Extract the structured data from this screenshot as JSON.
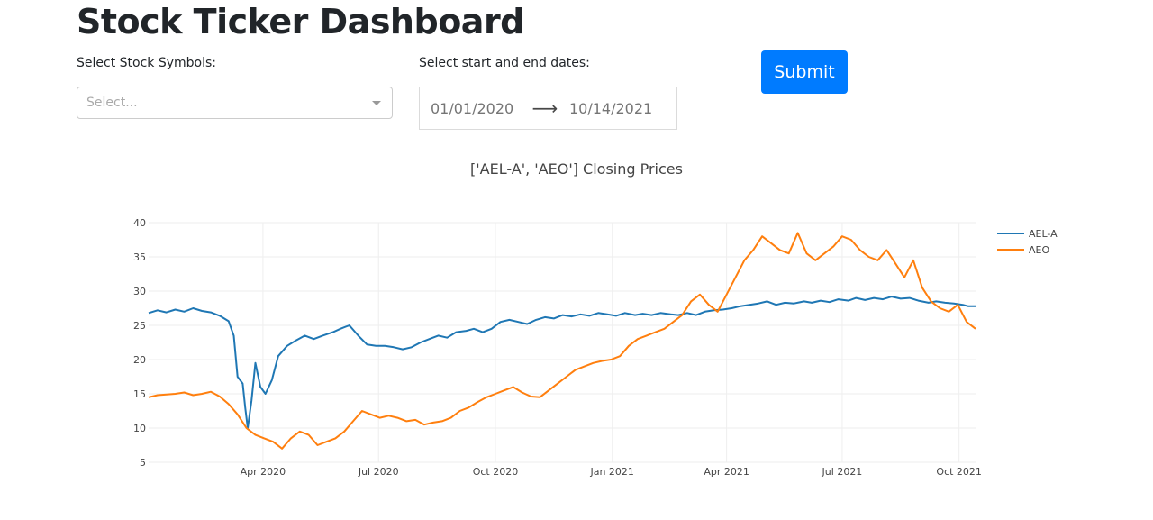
{
  "header": {
    "title": "Stock Ticker Dashboard"
  },
  "controls": {
    "symbols_label": "Select Stock Symbols:",
    "symbols_placeholder": "Select...",
    "dates_label": "Select start and end dates:",
    "start_date": "01/01/2020",
    "end_date": "10/14/2021",
    "date_arrow": "⟶",
    "submit_label": "Submit"
  },
  "chart_data": {
    "type": "line",
    "title": "['AEL-A', 'AEO'] Closing Prices",
    "xlabel": "",
    "ylabel": "",
    "xlim": [
      "2020-01-02",
      "2021-10-14"
    ],
    "ylim": [
      5,
      40
    ],
    "yticks": [
      5,
      10,
      15,
      20,
      25,
      30,
      35,
      40
    ],
    "xticks": [
      {
        "date": "2020-04-01",
        "label": "Apr 2020"
      },
      {
        "date": "2020-07-01",
        "label": "Jul 2020"
      },
      {
        "date": "2020-10-01",
        "label": "Oct 2020"
      },
      {
        "date": "2021-01-01",
        "label": "Jan 2021"
      },
      {
        "date": "2021-04-01",
        "label": "Apr 2021"
      },
      {
        "date": "2021-07-01",
        "label": "Jul 2021"
      },
      {
        "date": "2021-10-01",
        "label": "Oct 2021"
      }
    ],
    "grid": true,
    "legend_position": "top-right",
    "series": [
      {
        "name": "AEL-A",
        "color": "#1f77b4",
        "points": [
          [
            "2020-01-02",
            26.8
          ],
          [
            "2020-01-09",
            27.2
          ],
          [
            "2020-01-16",
            26.9
          ],
          [
            "2020-01-23",
            27.3
          ],
          [
            "2020-01-30",
            27.0
          ],
          [
            "2020-02-06",
            27.5
          ],
          [
            "2020-02-13",
            27.1
          ],
          [
            "2020-02-20",
            26.9
          ],
          [
            "2020-02-27",
            26.4
          ],
          [
            "2020-03-05",
            25.6
          ],
          [
            "2020-03-09",
            23.5
          ],
          [
            "2020-03-12",
            17.5
          ],
          [
            "2020-03-16",
            16.5
          ],
          [
            "2020-03-18",
            13.0
          ],
          [
            "2020-03-20",
            10.0
          ],
          [
            "2020-03-23",
            14.0
          ],
          [
            "2020-03-26",
            19.5
          ],
          [
            "2020-03-30",
            16.0
          ],
          [
            "2020-04-03",
            15.0
          ],
          [
            "2020-04-08",
            17.0
          ],
          [
            "2020-04-13",
            20.5
          ],
          [
            "2020-04-20",
            22.0
          ],
          [
            "2020-04-27",
            22.8
          ],
          [
            "2020-05-04",
            23.5
          ],
          [
            "2020-05-11",
            23.0
          ],
          [
            "2020-05-18",
            23.5
          ],
          [
            "2020-05-26",
            24.0
          ],
          [
            "2020-06-01",
            24.5
          ],
          [
            "2020-06-08",
            25.0
          ],
          [
            "2020-06-15",
            23.5
          ],
          [
            "2020-06-22",
            22.2
          ],
          [
            "2020-06-29",
            22.0
          ],
          [
            "2020-07-06",
            22.0
          ],
          [
            "2020-07-13",
            21.8
          ],
          [
            "2020-07-20",
            21.5
          ],
          [
            "2020-07-27",
            21.8
          ],
          [
            "2020-08-03",
            22.5
          ],
          [
            "2020-08-10",
            23.0
          ],
          [
            "2020-08-17",
            23.5
          ],
          [
            "2020-08-24",
            23.2
          ],
          [
            "2020-08-31",
            24.0
          ],
          [
            "2020-09-08",
            24.2
          ],
          [
            "2020-09-14",
            24.5
          ],
          [
            "2020-09-21",
            24.0
          ],
          [
            "2020-09-28",
            24.5
          ],
          [
            "2020-10-05",
            25.5
          ],
          [
            "2020-10-12",
            25.8
          ],
          [
            "2020-10-19",
            25.5
          ],
          [
            "2020-10-26",
            25.2
          ],
          [
            "2020-11-02",
            25.8
          ],
          [
            "2020-11-09",
            26.2
          ],
          [
            "2020-11-16",
            26.0
          ],
          [
            "2020-11-23",
            26.5
          ],
          [
            "2020-11-30",
            26.3
          ],
          [
            "2020-12-07",
            26.6
          ],
          [
            "2020-12-14",
            26.4
          ],
          [
            "2020-12-21",
            26.8
          ],
          [
            "2020-12-28",
            26.6
          ],
          [
            "2021-01-04",
            26.4
          ],
          [
            "2021-01-11",
            26.8
          ],
          [
            "2021-01-19",
            26.5
          ],
          [
            "2021-01-25",
            26.7
          ],
          [
            "2021-02-01",
            26.5
          ],
          [
            "2021-02-08",
            26.8
          ],
          [
            "2021-02-16",
            26.6
          ],
          [
            "2021-02-22",
            26.5
          ],
          [
            "2021-03-01",
            26.8
          ],
          [
            "2021-03-08",
            26.5
          ],
          [
            "2021-03-15",
            27.0
          ],
          [
            "2021-03-22",
            27.2
          ],
          [
            "2021-03-29",
            27.3
          ],
          [
            "2021-04-05",
            27.5
          ],
          [
            "2021-04-12",
            27.8
          ],
          [
            "2021-04-19",
            28.0
          ],
          [
            "2021-04-26",
            28.2
          ],
          [
            "2021-05-03",
            28.5
          ],
          [
            "2021-05-10",
            28.0
          ],
          [
            "2021-05-17",
            28.3
          ],
          [
            "2021-05-24",
            28.2
          ],
          [
            "2021-06-01",
            28.5
          ],
          [
            "2021-06-07",
            28.3
          ],
          [
            "2021-06-14",
            28.6
          ],
          [
            "2021-06-21",
            28.4
          ],
          [
            "2021-06-28",
            28.8
          ],
          [
            "2021-07-06",
            28.6
          ],
          [
            "2021-07-12",
            29.0
          ],
          [
            "2021-07-19",
            28.7
          ],
          [
            "2021-07-26",
            29.0
          ],
          [
            "2021-08-02",
            28.8
          ],
          [
            "2021-08-09",
            29.2
          ],
          [
            "2021-08-16",
            28.9
          ],
          [
            "2021-08-23",
            29.0
          ],
          [
            "2021-08-30",
            28.6
          ],
          [
            "2021-09-07",
            28.3
          ],
          [
            "2021-09-13",
            28.5
          ],
          [
            "2021-09-20",
            28.3
          ],
          [
            "2021-09-27",
            28.2
          ],
          [
            "2021-10-04",
            28.0
          ],
          [
            "2021-10-08",
            27.8
          ],
          [
            "2021-10-14",
            27.8
          ]
        ]
      },
      {
        "name": "AEO",
        "color": "#ff7f0e",
        "points": [
          [
            "2020-01-02",
            14.5
          ],
          [
            "2020-01-09",
            14.8
          ],
          [
            "2020-01-16",
            14.9
          ],
          [
            "2020-01-23",
            15.0
          ],
          [
            "2020-01-30",
            15.2
          ],
          [
            "2020-02-06",
            14.8
          ],
          [
            "2020-02-13",
            15.0
          ],
          [
            "2020-02-20",
            15.3
          ],
          [
            "2020-02-27",
            14.6
          ],
          [
            "2020-03-05",
            13.5
          ],
          [
            "2020-03-12",
            12.0
          ],
          [
            "2020-03-19",
            10.0
          ],
          [
            "2020-03-26",
            9.0
          ],
          [
            "2020-04-02",
            8.5
          ],
          [
            "2020-04-09",
            8.0
          ],
          [
            "2020-04-16",
            7.0
          ],
          [
            "2020-04-23",
            8.5
          ],
          [
            "2020-04-30",
            9.5
          ],
          [
            "2020-05-07",
            9.0
          ],
          [
            "2020-05-14",
            7.5
          ],
          [
            "2020-05-21",
            8.0
          ],
          [
            "2020-05-28",
            8.5
          ],
          [
            "2020-06-04",
            9.5
          ],
          [
            "2020-06-11",
            11.0
          ],
          [
            "2020-06-18",
            12.5
          ],
          [
            "2020-06-25",
            12.0
          ],
          [
            "2020-07-02",
            11.5
          ],
          [
            "2020-07-09",
            11.8
          ],
          [
            "2020-07-16",
            11.5
          ],
          [
            "2020-07-23",
            11.0
          ],
          [
            "2020-07-30",
            11.2
          ],
          [
            "2020-08-06",
            10.5
          ],
          [
            "2020-08-13",
            10.8
          ],
          [
            "2020-08-20",
            11.0
          ],
          [
            "2020-08-27",
            11.5
          ],
          [
            "2020-09-03",
            12.5
          ],
          [
            "2020-09-10",
            13.0
          ],
          [
            "2020-09-17",
            13.8
          ],
          [
            "2020-09-24",
            14.5
          ],
          [
            "2020-10-01",
            15.0
          ],
          [
            "2020-10-08",
            15.5
          ],
          [
            "2020-10-15",
            16.0
          ],
          [
            "2020-10-22",
            15.2
          ],
          [
            "2020-10-29",
            14.6
          ],
          [
            "2020-11-05",
            14.5
          ],
          [
            "2020-11-12",
            15.5
          ],
          [
            "2020-11-19",
            16.5
          ],
          [
            "2020-11-26",
            17.5
          ],
          [
            "2020-12-03",
            18.5
          ],
          [
            "2020-12-10",
            19.0
          ],
          [
            "2020-12-17",
            19.5
          ],
          [
            "2020-12-24",
            19.8
          ],
          [
            "2020-12-31",
            20.0
          ],
          [
            "2021-01-07",
            20.5
          ],
          [
            "2021-01-14",
            22.0
          ],
          [
            "2021-01-21",
            23.0
          ],
          [
            "2021-01-28",
            23.5
          ],
          [
            "2021-02-04",
            24.0
          ],
          [
            "2021-02-11",
            24.5
          ],
          [
            "2021-02-18",
            25.5
          ],
          [
            "2021-02-25",
            26.5
          ],
          [
            "2021-03-04",
            28.5
          ],
          [
            "2021-03-11",
            29.5
          ],
          [
            "2021-03-18",
            28.0
          ],
          [
            "2021-03-25",
            27.0
          ],
          [
            "2021-04-01",
            29.5
          ],
          [
            "2021-04-08",
            32.0
          ],
          [
            "2021-04-15",
            34.5
          ],
          [
            "2021-04-22",
            36.0
          ],
          [
            "2021-04-29",
            38.0
          ],
          [
            "2021-05-06",
            37.0
          ],
          [
            "2021-05-13",
            36.0
          ],
          [
            "2021-05-20",
            35.5
          ],
          [
            "2021-05-27",
            38.5
          ],
          [
            "2021-06-03",
            35.5
          ],
          [
            "2021-06-10",
            34.5
          ],
          [
            "2021-06-17",
            35.5
          ],
          [
            "2021-06-24",
            36.5
          ],
          [
            "2021-07-01",
            38.0
          ],
          [
            "2021-07-08",
            37.5
          ],
          [
            "2021-07-15",
            36.0
          ],
          [
            "2021-07-22",
            35.0
          ],
          [
            "2021-07-29",
            34.5
          ],
          [
            "2021-08-05",
            36.0
          ],
          [
            "2021-08-12",
            34.0
          ],
          [
            "2021-08-19",
            32.0
          ],
          [
            "2021-08-26",
            34.5
          ],
          [
            "2021-09-02",
            30.5
          ],
          [
            "2021-09-09",
            28.5
          ],
          [
            "2021-09-16",
            27.5
          ],
          [
            "2021-09-23",
            27.0
          ],
          [
            "2021-09-30",
            28.0
          ],
          [
            "2021-10-07",
            25.5
          ],
          [
            "2021-10-14",
            24.5
          ]
        ]
      }
    ]
  }
}
